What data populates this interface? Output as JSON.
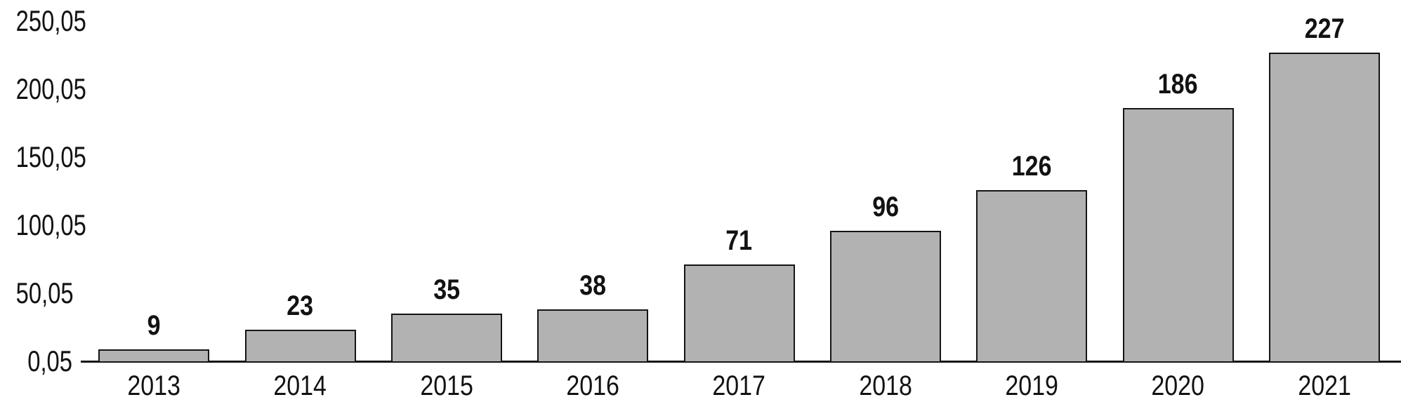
{
  "chart_data": {
    "type": "bar",
    "title": "",
    "xlabel": "",
    "ylabel": "",
    "categories": [
      "2013",
      "2014",
      "2015",
      "2016",
      "2017",
      "2018",
      "2019",
      "2020",
      "2021"
    ],
    "values": [
      9,
      23,
      35,
      38,
      71,
      96,
      126,
      186,
      227
    ],
    "value_labels": [
      "9",
      "23",
      "35",
      "38",
      "71",
      "96",
      "126",
      "186",
      "227"
    ],
    "y_tick_values": [
      0.05,
      50.05,
      100.05,
      150.05,
      200.05,
      250.05
    ],
    "y_tick_labels": [
      "0,05",
      "50,05",
      "100,05",
      "150,05",
      "200,05",
      "250,05"
    ],
    "ylim": [
      0.05,
      250.05
    ],
    "decimal_separator": ",",
    "grid": false,
    "legend": "none",
    "colors": {
      "bar_fill": "#b2b2b2",
      "bar_border": "#141414",
      "axis_line": "#141414",
      "text": "#121212",
      "background": "#ffffff"
    }
  }
}
